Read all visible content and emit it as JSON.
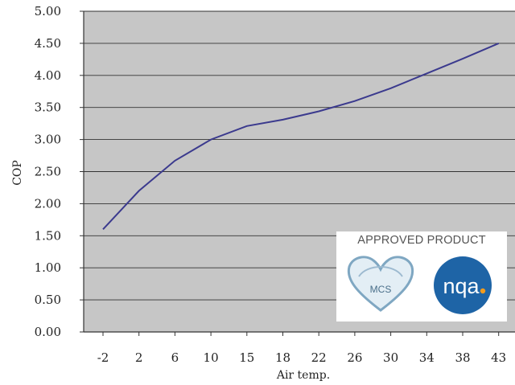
{
  "chart_data": {
    "type": "line",
    "xlabel": "Air temp.",
    "ylabel": "COP",
    "categories": [
      "-2",
      "2",
      "6",
      "10",
      "15",
      "18",
      "22",
      "26",
      "30",
      "34",
      "38",
      "43"
    ],
    "yticks": [
      "0.00",
      "0.50",
      "1.00",
      "1.50",
      "2.00",
      "2.50",
      "3.00",
      "3.50",
      "4.00",
      "4.50",
      "5.00"
    ],
    "ylim": [
      0,
      5
    ],
    "grid": true,
    "series": [
      {
        "values": [
          1.6,
          2.2,
          2.67,
          3.0,
          3.21,
          3.31,
          3.44,
          3.6,
          3.8,
          4.03,
          4.26,
          4.5
        ]
      }
    ],
    "colors": {
      "plot_bg": "#c6c6c6",
      "line": "#3b3a8e",
      "grid": "#ffffff",
      "axis": "#333333"
    }
  },
  "badge": {
    "title": "APPROVED PRODUCT",
    "mcs_label": "MCS",
    "nqa_label": "nqa",
    "mcs_icon": "mcs-heart-logo",
    "nqa_icon": "nqa-circle-logo"
  }
}
